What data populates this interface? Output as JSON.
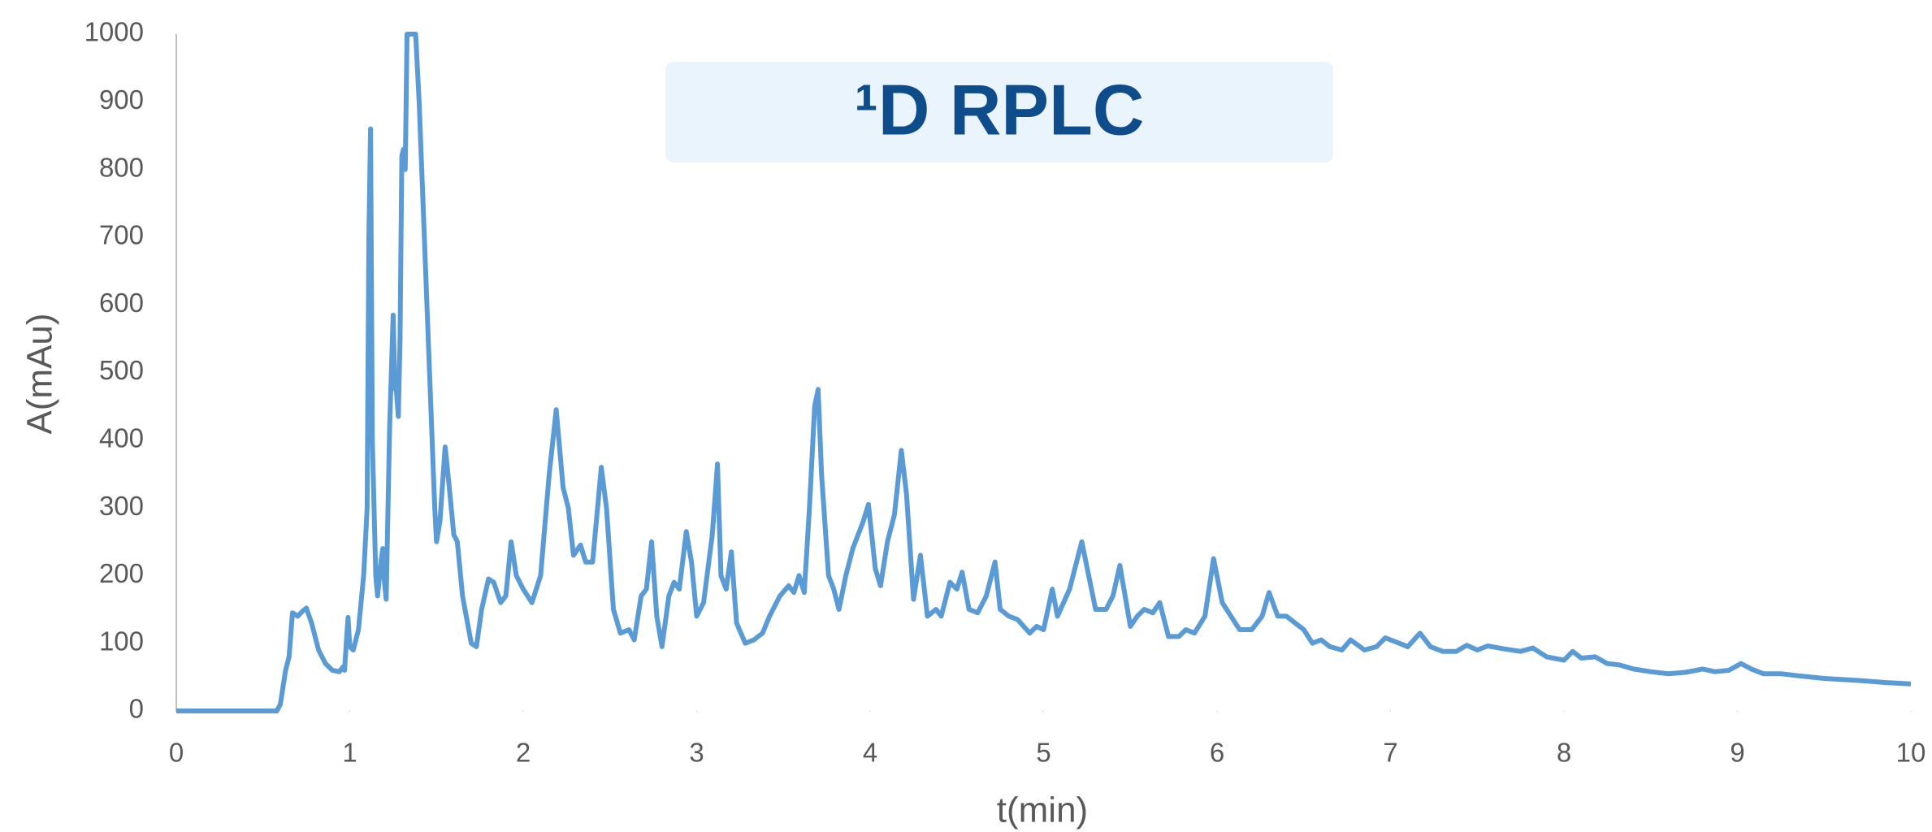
{
  "chart_data": {
    "type": "line",
    "title": "¹D RPLC",
    "x_label": "t(min)",
    "y_label": "A(mAu)",
    "xlim": [
      0,
      10
    ],
    "ylim": [
      0,
      1000
    ],
    "xticks": [
      0,
      1,
      2,
      3,
      4,
      5,
      6,
      7,
      8,
      9,
      10
    ],
    "yticks": [
      0,
      100,
      200,
      300,
      400,
      500,
      600,
      700,
      800,
      900,
      1000
    ],
    "color": "#5b9bd5",
    "x": [
      0,
      0.58,
      0.6,
      0.63,
      0.65,
      0.67,
      0.7,
      0.73,
      0.75,
      0.78,
      0.82,
      0.86,
      0.9,
      0.94,
      0.96,
      0.97,
      0.98,
      0.99,
      1.0,
      1.02,
      1.05,
      1.08,
      1.1,
      1.11,
      1.12,
      1.13,
      1.15,
      1.16,
      1.18,
      1.19,
      1.2,
      1.21,
      1.23,
      1.25,
      1.26,
      1.27,
      1.28,
      1.29,
      1.3,
      1.31,
      1.32,
      1.33,
      1.34,
      1.38,
      1.4,
      1.43,
      1.46,
      1.49,
      1.5,
      1.52,
      1.55,
      1.57,
      1.6,
      1.62,
      1.65,
      1.7,
      1.73,
      1.76,
      1.8,
      1.83,
      1.87,
      1.9,
      1.93,
      1.96,
      2.0,
      2.05,
      2.1,
      2.15,
      2.19,
      2.23,
      2.26,
      2.29,
      2.33,
      2.36,
      2.4,
      2.45,
      2.48,
      2.52,
      2.56,
      2.61,
      2.64,
      2.68,
      2.71,
      2.74,
      2.77,
      2.8,
      2.84,
      2.87,
      2.9,
      2.94,
      2.97,
      3.0,
      3.04,
      3.09,
      3.12,
      3.14,
      3.17,
      3.2,
      3.23,
      3.28,
      3.33,
      3.38,
      3.42,
      3.48,
      3.53,
      3.56,
      3.59,
      3.62,
      3.65,
      3.68,
      3.7,
      3.72,
      3.76,
      3.79,
      3.82,
      3.86,
      3.9,
      3.96,
      3.99,
      4.03,
      4.06,
      4.1,
      4.14,
      4.18,
      4.21,
      4.25,
      4.29,
      4.33,
      4.38,
      4.41,
      4.46,
      4.5,
      4.53,
      4.57,
      4.62,
      4.67,
      4.72,
      4.75,
      4.8,
      4.85,
      4.92,
      4.96,
      5.0,
      5.05,
      5.08,
      5.15,
      5.22,
      5.26,
      5.3,
      5.36,
      5.4,
      5.44,
      5.5,
      5.54,
      5.58,
      5.63,
      5.67,
      5.72,
      5.78,
      5.82,
      5.87,
      5.93,
      5.98,
      6.03,
      6.08,
      6.13,
      6.2,
      6.26,
      6.3,
      6.35,
      6.4,
      6.45,
      6.5,
      6.55,
      6.6,
      6.65,
      6.72,
      6.77,
      6.85,
      6.92,
      6.97,
      7.05,
      7.1,
      7.17,
      7.23,
      7.3,
      7.38,
      7.44,
      7.5,
      7.56,
      7.65,
      7.75,
      7.82,
      7.9,
      8.0,
      8.05,
      8.1,
      8.18,
      8.25,
      8.32,
      8.4,
      8.5,
      8.6,
      8.7,
      8.8,
      8.87,
      8.95,
      9.02,
      9.08,
      9.15,
      9.25,
      9.35,
      9.5,
      9.7,
      9.85,
      10.0
    ],
    "values": [
      0,
      0,
      10,
      60,
      80,
      145,
      140,
      148,
      152,
      130,
      90,
      70,
      60,
      58,
      65,
      60,
      100,
      138,
      95,
      90,
      120,
      200,
      300,
      700,
      860,
      400,
      200,
      170,
      220,
      240,
      190,
      165,
      420,
      585,
      480,
      470,
      435,
      550,
      820,
      830,
      800,
      1000,
      1000,
      1000,
      900,
      700,
      500,
      300,
      250,
      280,
      390,
      340,
      260,
      250,
      170,
      100,
      95,
      150,
      195,
      190,
      160,
      170,
      250,
      200,
      180,
      160,
      200,
      350,
      445,
      330,
      300,
      230,
      245,
      220,
      220,
      360,
      300,
      150,
      115,
      120,
      105,
      170,
      180,
      250,
      140,
      95,
      170,
      190,
      180,
      265,
      220,
      140,
      160,
      260,
      365,
      200,
      180,
      235,
      130,
      100,
      105,
      115,
      140,
      170,
      185,
      175,
      200,
      175,
      300,
      450,
      475,
      350,
      200,
      180,
      150,
      200,
      240,
      280,
      305,
      210,
      185,
      250,
      290,
      385,
      320,
      165,
      230,
      140,
      150,
      140,
      190,
      180,
      205,
      150,
      145,
      170,
      220,
      150,
      140,
      135,
      115,
      125,
      120,
      180,
      140,
      180,
      250,
      200,
      150,
      150,
      170,
      215,
      125,
      140,
      150,
      145,
      160,
      110,
      110,
      120,
      115,
      140,
      225,
      160,
      140,
      120,
      120,
      140,
      175,
      140,
      140,
      130,
      120,
      100,
      105,
      95,
      90,
      105,
      90,
      95,
      108,
      100,
      95,
      115,
      95,
      88,
      88,
      97,
      90,
      96,
      92,
      88,
      93,
      80,
      75,
      88,
      78,
      80,
      70,
      68,
      62,
      58,
      55,
      57,
      62,
      58,
      60,
      70,
      62,
      55,
      55,
      52,
      48,
      45,
      42,
      40
    ]
  }
}
